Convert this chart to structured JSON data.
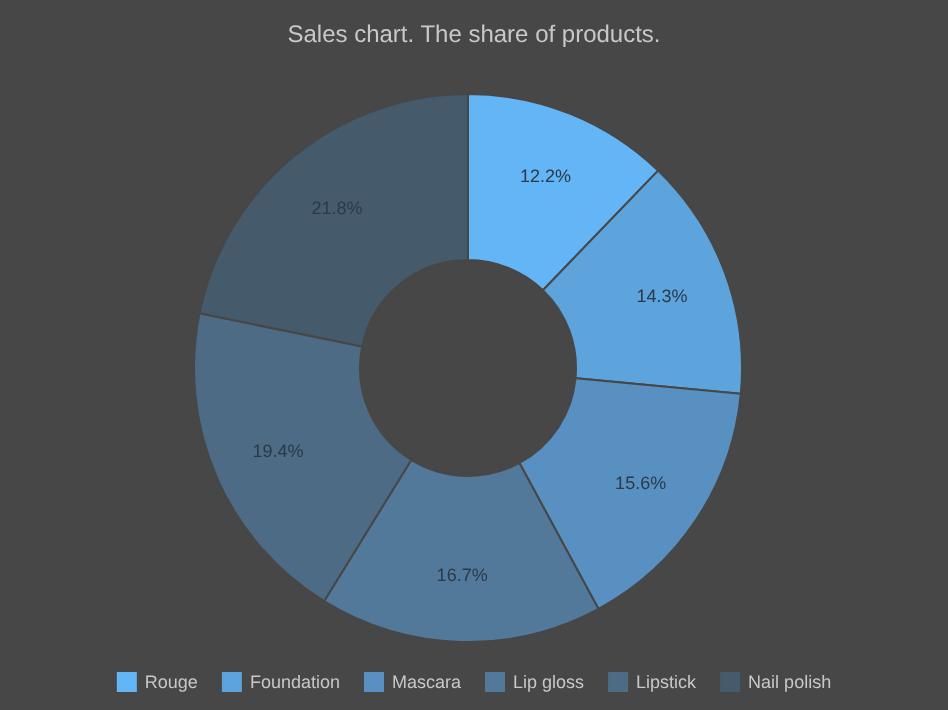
{
  "chart_data": {
    "type": "donut",
    "title": "Sales chart. The share of products.",
    "categories": [
      "Rouge",
      "Foundation",
      "Mascara",
      "Lip gloss",
      "Lipstick",
      "Nail polish"
    ],
    "values": [
      12.2,
      14.3,
      15.6,
      16.7,
      19.4,
      21.8
    ],
    "value_labels": [
      "12.2%",
      "14.3%",
      "15.6%",
      "16.7%",
      "19.4%",
      "21.8%"
    ],
    "colors": [
      "#64b5f6",
      "#5da3dc",
      "#5891c1",
      "#53799a",
      "#4d6b84",
      "#455a6b"
    ],
    "legend": "bottom"
  }
}
